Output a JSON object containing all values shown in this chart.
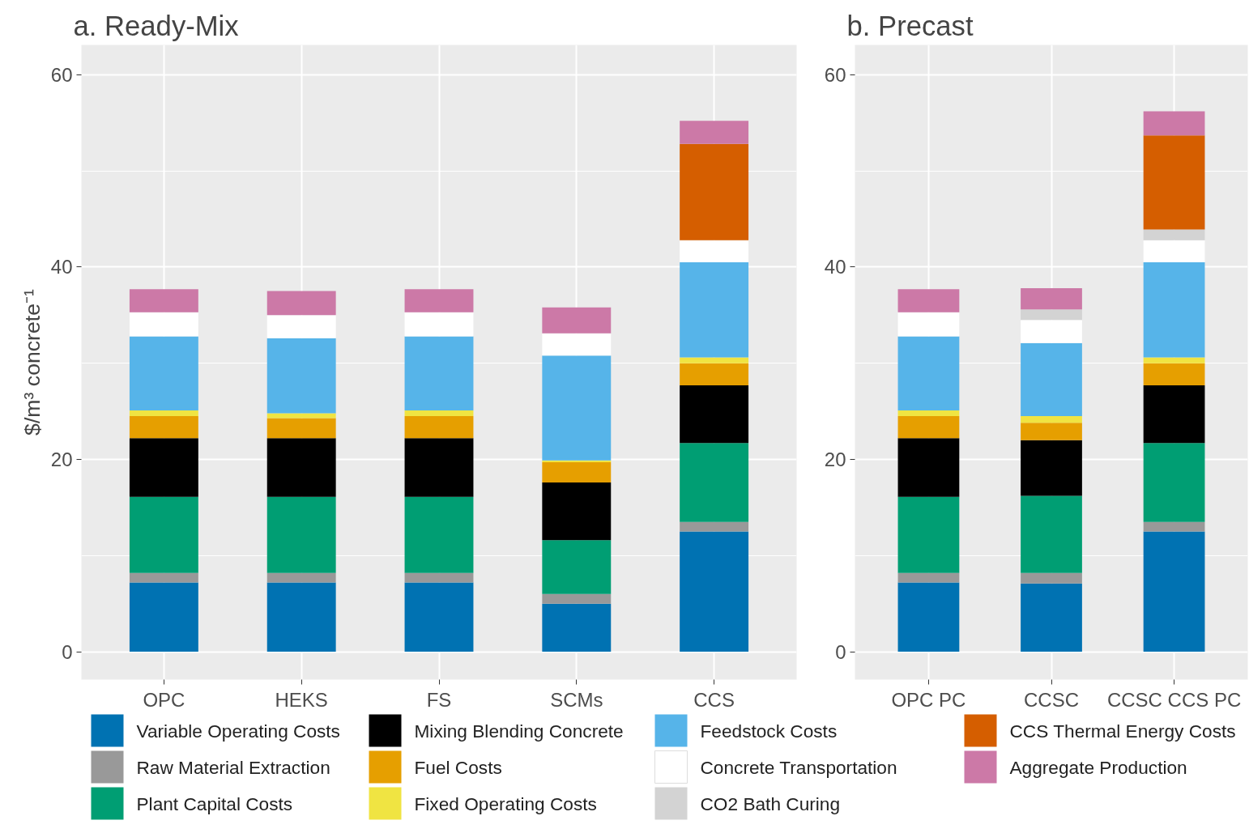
{
  "chart_data": [
    {
      "type": "bar",
      "title": "a. Ready-Mix",
      "ylabel": "$/m³ concrete⁻¹",
      "stacked": true,
      "grid": true,
      "categories": [
        "OPC",
        "HEKS",
        "FS",
        "SCMs",
        "CCS"
      ],
      "ylim": [
        -2.9,
        63.1
      ],
      "yticks": [
        0,
        20,
        40,
        60
      ],
      "series": [
        {
          "color": "#0072b2",
          "values": [
            7.2,
            7.2,
            7.2,
            5.0,
            12.5
          ]
        },
        {
          "color": "#999999",
          "values": [
            1.0,
            1.0,
            1.0,
            1.0,
            1.0
          ]
        },
        {
          "color": "#009e73",
          "values": [
            7.9,
            7.9,
            7.9,
            5.6,
            8.2
          ]
        },
        {
          "color": "#000000",
          "values": [
            6.1,
            6.1,
            6.1,
            6.0,
            6.0
          ]
        },
        {
          "color": "#e69f00",
          "values": [
            2.3,
            2.1,
            2.3,
            2.1,
            2.3
          ]
        },
        {
          "color": "#f0e442",
          "values": [
            0.6,
            0.5,
            0.6,
            0.2,
            0.6
          ]
        },
        {
          "color": "#56b4e9",
          "values": [
            7.7,
            7.8,
            7.7,
            10.9,
            9.9
          ]
        },
        {
          "color": "#ffffff",
          "values": [
            2.5,
            2.4,
            2.5,
            2.3,
            2.3
          ]
        },
        {
          "color": "#d55e00",
          "values": [
            null,
            null,
            null,
            null,
            10.0
          ]
        },
        {
          "color": "#cc79a7",
          "values": [
            2.4,
            2.5,
            2.4,
            2.7,
            2.4
          ]
        }
      ]
    },
    {
      "type": "bar",
      "title": "b. Precast",
      "stacked": true,
      "legend": "bottom",
      "grid": true,
      "categories": [
        "OPC PC",
        "CCSC",
        "CCSC CCS PC"
      ],
      "ylim": [
        -2.9,
        63.1
      ],
      "yticks": [
        0,
        20,
        40,
        60
      ],
      "series": [
        {
          "name": "Variable Operating Costs",
          "color": "#0072b2",
          "values": [
            7.2,
            7.1,
            12.5
          ]
        },
        {
          "name": "Raw Material Extraction",
          "color": "#999999",
          "values": [
            1.0,
            1.1,
            1.0
          ]
        },
        {
          "name": "Plant Capital Costs",
          "color": "#009e73",
          "values": [
            7.9,
            8.0,
            8.2
          ]
        },
        {
          "name": "Mixing Blending Concrete",
          "color": "#000000",
          "values": [
            6.1,
            5.8,
            6.0
          ]
        },
        {
          "name": "Fuel Costs",
          "color": "#e69f00",
          "values": [
            2.3,
            1.8,
            2.3
          ]
        },
        {
          "name": "Fixed Operating Costs",
          "color": "#f0e442",
          "values": [
            0.6,
            0.7,
            0.6
          ]
        },
        {
          "name": "Feedstock Costs",
          "color": "#56b4e9",
          "values": [
            7.7,
            7.6,
            9.9
          ]
        },
        {
          "name": "Concrete Transportation",
          "color": "#ffffff",
          "values": [
            2.5,
            2.4,
            2.3
          ]
        },
        {
          "name": "CO2 Bath Curing",
          "color": "#d3d3d3",
          "values": [
            null,
            1.1,
            1.1
          ]
        },
        {
          "name": "CCS Thermal Energy Costs",
          "color": "#d55e00",
          "values": [
            null,
            null,
            9.8
          ]
        },
        {
          "name": "Aggregate Production",
          "color": "#cc79a7",
          "values": [
            2.4,
            2.2,
            2.5
          ]
        }
      ]
    }
  ]
}
